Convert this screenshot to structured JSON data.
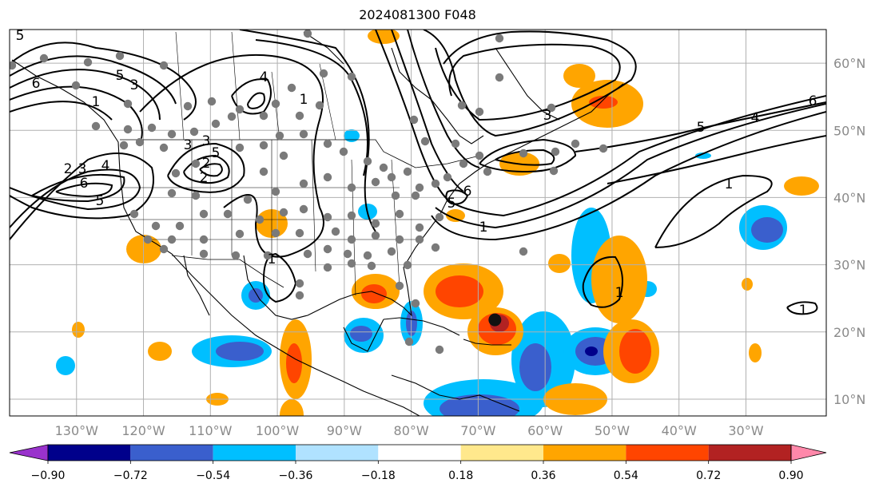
{
  "title": "2024081300 F048",
  "map": {
    "projection": "PlateCarree",
    "lon_range": [
      -140,
      -18
    ],
    "lat_range": [
      7.5,
      65
    ],
    "lon_ticks": [
      "130°W",
      "120°W",
      "110°W",
      "100°W",
      "90°W",
      "80°W",
      "70°W",
      "60°W",
      "50°W",
      "40°W",
      "30°W"
    ],
    "lat_ticks": [
      "60°N",
      "50°N",
      "40°N",
      "30°N",
      "20°N",
      "10°N"
    ],
    "grid": true,
    "storm_marker": {
      "lon": -67.5,
      "lat": 21.8
    }
  },
  "colorbar": {
    "orientation": "horizontal",
    "extend": "both",
    "labels": [
      "−0.90",
      "−0.72",
      "−0.54",
      "−0.36",
      "−0.18",
      "0.18",
      "0.36",
      "0.54",
      "0.72",
      "0.90"
    ],
    "colors": [
      "#9932cc",
      "#00008b",
      "#3a5fcd",
      "#00bfff",
      "#b0e2ff",
      "#ffffff",
      "#ffe88c",
      "#ffa500",
      "#ff4500",
      "#b22222",
      "#ff88aa"
    ]
  },
  "contour_labels": [
    "5",
    "6",
    "5",
    "3",
    "1",
    "2",
    "3",
    "4",
    "6",
    "5",
    "5",
    "3",
    "2",
    "4",
    "1",
    "1",
    "3",
    "2",
    "6",
    "5",
    "1",
    "3",
    "1",
    "4",
    "5",
    "6",
    "1",
    "1"
  ]
}
